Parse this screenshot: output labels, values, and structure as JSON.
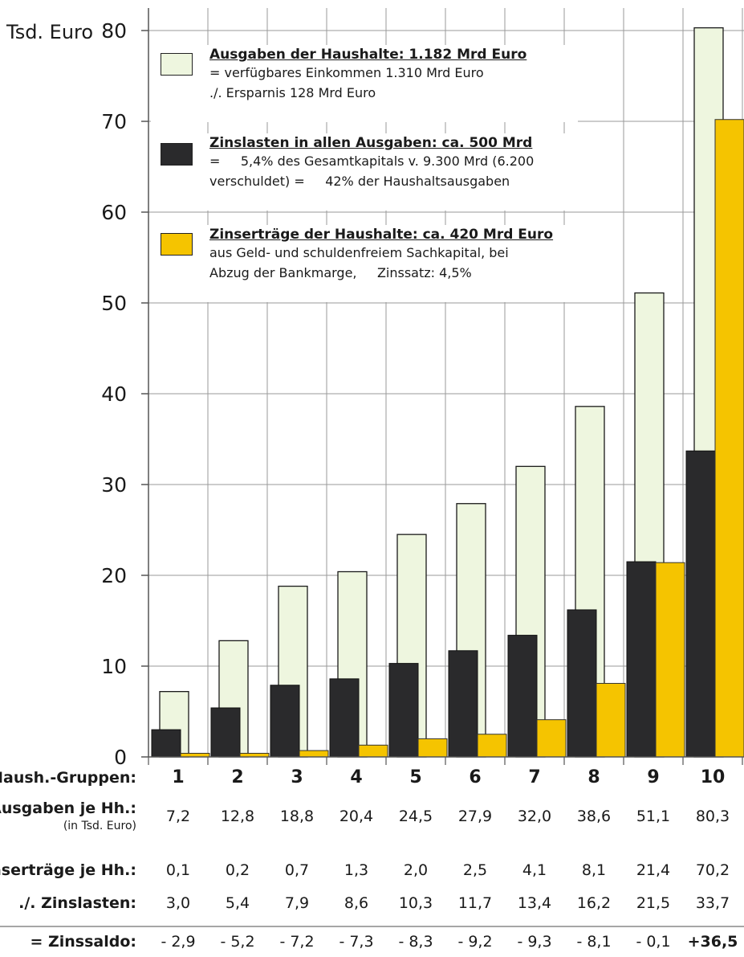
{
  "chart_data": {
    "type": "bar",
    "ylabel": "Tsd. Euro",
    "ylim": [
      0,
      80
    ],
    "yticks": [
      0,
      10,
      20,
      30,
      40,
      50,
      60,
      70,
      80
    ],
    "categories": [
      "1",
      "2",
      "3",
      "4",
      "5",
      "6",
      "7",
      "8",
      "9",
      "10"
    ],
    "series": [
      {
        "name": "Ausgaben der Haushalte: 1.182 Mrd Euro",
        "color": "#eef6df",
        "values": [
          7.2,
          12.8,
          18.8,
          20.4,
          24.5,
          27.9,
          32.0,
          38.6,
          51.1,
          80.3
        ]
      },
      {
        "name": "Zinslasten in allen Ausgaben: ca. 500 Mrd",
        "color": "#2a2a2c",
        "values": [
          3.0,
          5.4,
          7.9,
          8.6,
          10.3,
          11.7,
          13.4,
          16.2,
          21.5,
          33.7
        ]
      },
      {
        "name": "Zinserträge der Haushalte: ca. 420 Mrd Euro",
        "color": "#f5c400",
        "values": [
          0.1,
          0.2,
          0.7,
          1.3,
          2.0,
          2.5,
          4.1,
          8.1,
          21.4,
          70.2
        ]
      }
    ]
  },
  "legend": [
    {
      "title": "Ausgaben der Haushalte: 1.182 Mrd Euro",
      "lines": [
        "= verfügbares Einkommen 1.310 Mrd Euro",
        "./. Ersparnis 128 Mrd Euro"
      ]
    },
    {
      "title": "Zinslasten in allen Ausgaben: ca. 500 Mrd",
      "lines": [
        "=     5,4% des Gesamtkapitals v. 9.300 Mrd (6.200",
        "verschuldet) =     42% der Haushaltsausgaben"
      ]
    },
    {
      "title": "Zinserträge der Haushalte: ca. 420 Mrd Euro",
      "lines": [
        "aus Geld- und schuldenfreiem Sachkapital, bei",
        "Abzug der Bankmarge,     Zinssatz: 4,5%"
      ]
    }
  ],
  "table": {
    "groups_label": "Haush.-Gruppen:",
    "groups": [
      "1",
      "2",
      "3",
      "4",
      "5",
      "6",
      "7",
      "8",
      "9",
      "10"
    ],
    "ausgaben_label": "Ausgaben je Hh.:",
    "ausgaben_sublabel": "(in Tsd. Euro)",
    "ausgaben": [
      "7,2",
      "12,8",
      "18,8",
      "20,4",
      "24,5",
      "27,9",
      "32,0",
      "38,6",
      "51,1",
      "80,3"
    ],
    "ertraege_label": "Zinserträge je Hh.:",
    "ertraege": [
      "0,1",
      "0,2",
      "0,7",
      "1,3",
      "2,0",
      "2,5",
      "4,1",
      "8,1",
      "21,4",
      "70,2"
    ],
    "lasten_label": "./. Zinslasten:",
    "lasten": [
      "3,0",
      "5,4",
      "7,9",
      "8,6",
      "10,3",
      "11,7",
      "13,4",
      "16,2",
      "21,5",
      "33,7"
    ],
    "saldo_label": "= Zinssaldo:",
    "saldo": [
      "- 2,9",
      "- 5,2",
      "- 7,2",
      "- 7,3",
      "- 8,3",
      "- 9,2",
      "- 9,3",
      "- 8,1",
      "- 0,1",
      "+36,5"
    ]
  }
}
